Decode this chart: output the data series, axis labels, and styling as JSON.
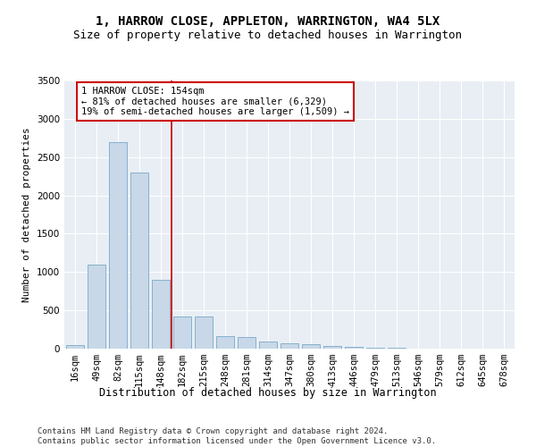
{
  "title": "1, HARROW CLOSE, APPLETON, WARRINGTON, WA4 5LX",
  "subtitle": "Size of property relative to detached houses in Warrington",
  "xlabel": "Distribution of detached houses by size in Warrington",
  "ylabel": "Number of detached properties",
  "bar_color": "#c8d8e8",
  "bar_edge_color": "#7aa8c8",
  "background_color": "#e8eef4",
  "categories": [
    "16sqm",
    "49sqm",
    "82sqm",
    "115sqm",
    "148sqm",
    "182sqm",
    "215sqm",
    "248sqm",
    "281sqm",
    "314sqm",
    "347sqm",
    "380sqm",
    "413sqm",
    "446sqm",
    "479sqm",
    "513sqm",
    "546sqm",
    "579sqm",
    "612sqm",
    "645sqm",
    "678sqm"
  ],
  "values": [
    50,
    1100,
    2700,
    2300,
    900,
    420,
    420,
    160,
    150,
    90,
    65,
    55,
    30,
    20,
    12,
    8,
    5,
    3,
    2,
    1,
    1
  ],
  "property_size": 154,
  "vline_color": "#cc0000",
  "annotation_text": "1 HARROW CLOSE: 154sqm\n← 81% of detached houses are smaller (6,329)\n19% of semi-detached houses are larger (1,509) →",
  "annotation_box_color": "#ffffff",
  "annotation_box_edge": "#cc0000",
  "ylim": [
    0,
    3500
  ],
  "yticks": [
    0,
    500,
    1000,
    1500,
    2000,
    2500,
    3000,
    3500
  ],
  "footer_text": "Contains HM Land Registry data © Crown copyright and database right 2024.\nContains public sector information licensed under the Open Government Licence v3.0.",
  "title_fontsize": 10,
  "subtitle_fontsize": 9,
  "xlabel_fontsize": 8.5,
  "ylabel_fontsize": 8,
  "tick_fontsize": 7.5,
  "footer_fontsize": 6.5,
  "annot_fontsize": 7.5
}
